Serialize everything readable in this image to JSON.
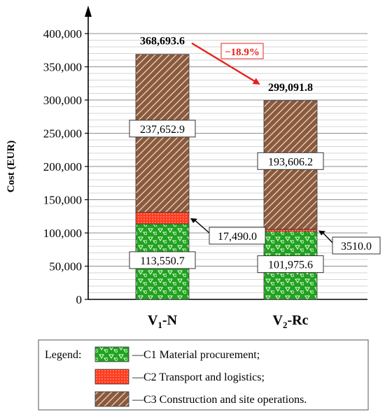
{
  "chart_data": {
    "type": "bar",
    "stacked": true,
    "ylabel": "Cost (EUR)",
    "ylim": [
      0,
      400000
    ],
    "yticks": [
      {
        "value": 0,
        "label": "0"
      },
      {
        "value": 50000,
        "label": "50,000"
      },
      {
        "value": 100000,
        "label": "100,000"
      },
      {
        "value": 150000,
        "label": "150,000"
      },
      {
        "value": 200000,
        "label": "200,000"
      },
      {
        "value": 250000,
        "label": "250,000"
      },
      {
        "value": 300000,
        "label": "300,000"
      },
      {
        "value": 350000,
        "label": "350,000"
      },
      {
        "value": 400000,
        "label": "400,000"
      }
    ],
    "minor_grid_step": 10000,
    "grid": true,
    "categories": [
      {
        "main": "V",
        "sub": "1",
        "suffix": "-N"
      },
      {
        "main": "V",
        "sub": "2",
        "suffix": "-Rc"
      }
    ],
    "series": [
      {
        "name": "C1 Material procurement;",
        "color": "#22a222",
        "pattern": "triangles",
        "values": [
          113550.7,
          101975.6
        ],
        "labels": [
          "113,550.7",
          "101,975.6"
        ]
      },
      {
        "name": "C2 Transport and logistics;",
        "color": "#ff3b1f",
        "pattern": "dots",
        "values": [
          17490.0,
          3510.0
        ],
        "labels": [
          "17,490.0",
          "3510.0"
        ]
      },
      {
        "name": "C3 Construction and site operations.",
        "color": "#8b5a3c",
        "pattern": "hatch",
        "values": [
          237652.9,
          193606.2
        ],
        "labels": [
          "237,652.9",
          "193,606.2"
        ]
      }
    ],
    "totals": [
      {
        "value": 368693.6,
        "label": "368,693.6"
      },
      {
        "value": 299091.8,
        "label": "299,091.8"
      }
    ],
    "change_annotation": "−18.9%",
    "legend": {
      "title": "Legend:",
      "position": "bottom"
    }
  }
}
